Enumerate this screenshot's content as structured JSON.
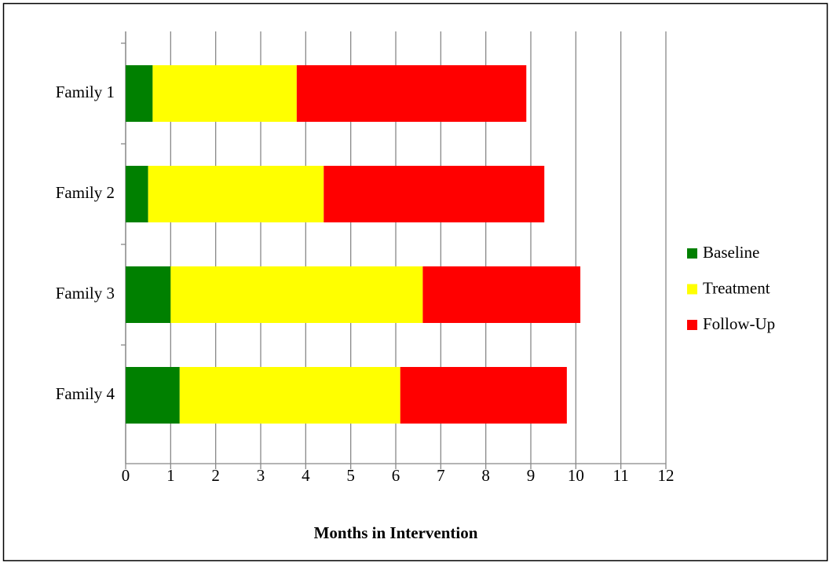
{
  "chart_data": {
    "type": "stacked-barh",
    "x_label": "Months in Intervention",
    "categories": [
      "Family 1",
      "Family 2",
      "Family 3",
      "Family 4"
    ],
    "series": [
      {
        "name": "Baseline",
        "color": "#008000",
        "values": [
          0.6,
          0.5,
          1.0,
          1.2
        ]
      },
      {
        "name": "Treatment",
        "color": "#ffff00",
        "values": [
          3.2,
          3.9,
          5.6,
          4.9
        ]
      },
      {
        "name": "Follow-Up",
        "color": "#ff0000",
        "values": [
          5.1,
          4.9,
          3.5,
          3.7
        ]
      }
    ],
    "xlim": [
      0,
      12
    ],
    "xticks": [
      0,
      1,
      2,
      3,
      4,
      5,
      6,
      7,
      8,
      9,
      10,
      11,
      12
    ],
    "grid": true,
    "legend": "right"
  }
}
